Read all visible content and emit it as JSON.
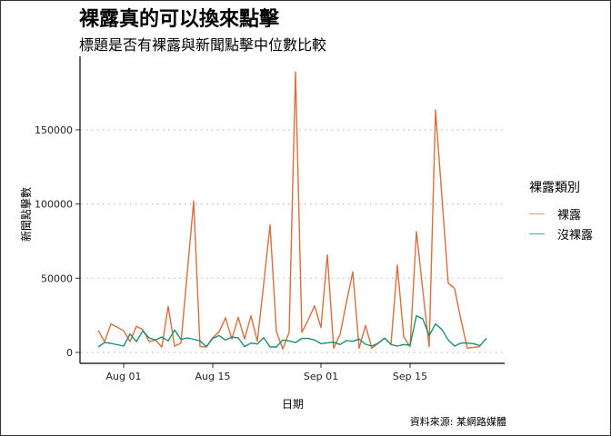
{
  "title": "裸露真的可以換來點擊",
  "subtitle": "標題是否有裸露與新聞點擊中位數比較",
  "caption": "資料來源: 某網路媒體",
  "colors": {
    "nude": "#D6703F",
    "non_nude": "#1B8F6E",
    "grid": "#BEBEBE",
    "axis": "#000000",
    "border": "#333333"
  },
  "chart_data": {
    "type": "line",
    "title": "裸露真的可以換來點擊",
    "subtitle": "標題是否有裸露與新聞點擊中位數比較",
    "xlabel": "日期",
    "ylabel": "新聞點擊數",
    "x_ticks": [
      "Aug 01",
      "Aug 15",
      "Sep 01",
      "Sep 15"
    ],
    "y_ticks": [
      0,
      50000,
      100000,
      150000
    ],
    "ylim": [
      -6000,
      198000
    ],
    "grid": "horizontal dotted major lines",
    "legend": {
      "title": "裸露類別",
      "position": "right",
      "entries": [
        "裸露",
        "沒裸露"
      ]
    },
    "x_start": "Jul 28",
    "x": [
      "Jul 28",
      "Jul 29",
      "Jul 30",
      "Jul 31",
      "Aug 01",
      "Aug 02",
      "Aug 03",
      "Aug 04",
      "Aug 05",
      "Aug 06",
      "Aug 07",
      "Aug 08",
      "Aug 09",
      "Aug 10",
      "Aug 11",
      "Aug 12",
      "Aug 13",
      "Aug 14",
      "Aug 15",
      "Aug 16",
      "Aug 17",
      "Aug 18",
      "Aug 19",
      "Aug 20",
      "Aug 21",
      "Aug 22",
      "Aug 23",
      "Aug 24",
      "Aug 25",
      "Aug 26",
      "Aug 27",
      "Aug 28",
      "Aug 29",
      "Aug 30",
      "Aug 31",
      "Sep 01",
      "Sep 02",
      "Sep 03",
      "Sep 04",
      "Sep 05",
      "Sep 06",
      "Sep 07",
      "Sep 08",
      "Sep 09",
      "Sep 10",
      "Sep 11",
      "Sep 12",
      "Sep 13",
      "Sep 14",
      "Sep 15",
      "Sep 16",
      "Sep 17",
      "Sep 18",
      "Sep 19",
      "Sep 20",
      "Sep 21",
      "Sep 22",
      "Sep 23",
      "Sep 24",
      "Sep 25",
      "Sep 26",
      "Sep 27"
    ],
    "series": [
      {
        "name": "裸露",
        "color": "#D6703F",
        "values": [
          14900,
          7300,
          19200,
          17000,
          14500,
          7300,
          17600,
          15500,
          7300,
          8300,
          3700,
          31000,
          4300,
          6300,
          54000,
          102000,
          3900,
          3700,
          10000,
          13900,
          23300,
          9000,
          23700,
          9000,
          24700,
          7500,
          46000,
          86000,
          14100,
          2300,
          13500,
          189000,
          13500,
          22000,
          31400,
          16700,
          65700,
          2900,
          12100,
          33700,
          54300,
          2900,
          18200,
          2900,
          6100,
          9600,
          5300,
          58900,
          10600,
          3900,
          81400,
          42000,
          3900,
          163400,
          105000,
          46700,
          43000,
          22000,
          2900,
          3400,
          3900,
          null
        ]
      },
      {
        "name": "沒裸露",
        "color": "#1B8F6E",
        "values": [
          3700,
          6700,
          6100,
          5200,
          4300,
          12400,
          7300,
          14500,
          9800,
          8400,
          10400,
          7800,
          15100,
          8800,
          9800,
          8900,
          7800,
          3900,
          9400,
          11400,
          8400,
          10400,
          9800,
          3900,
          6300,
          5700,
          10000,
          3700,
          3700,
          8400,
          7800,
          6700,
          9400,
          9400,
          8400,
          5900,
          6500,
          6900,
          5300,
          8000,
          7500,
          9000,
          5500,
          4300,
          6300,
          9600,
          5300,
          4300,
          5300,
          4900,
          24700,
          22600,
          11400,
          19200,
          15500,
          8400,
          4300,
          6300,
          6300,
          5900,
          4500,
          9600
        ]
      }
    ]
  }
}
